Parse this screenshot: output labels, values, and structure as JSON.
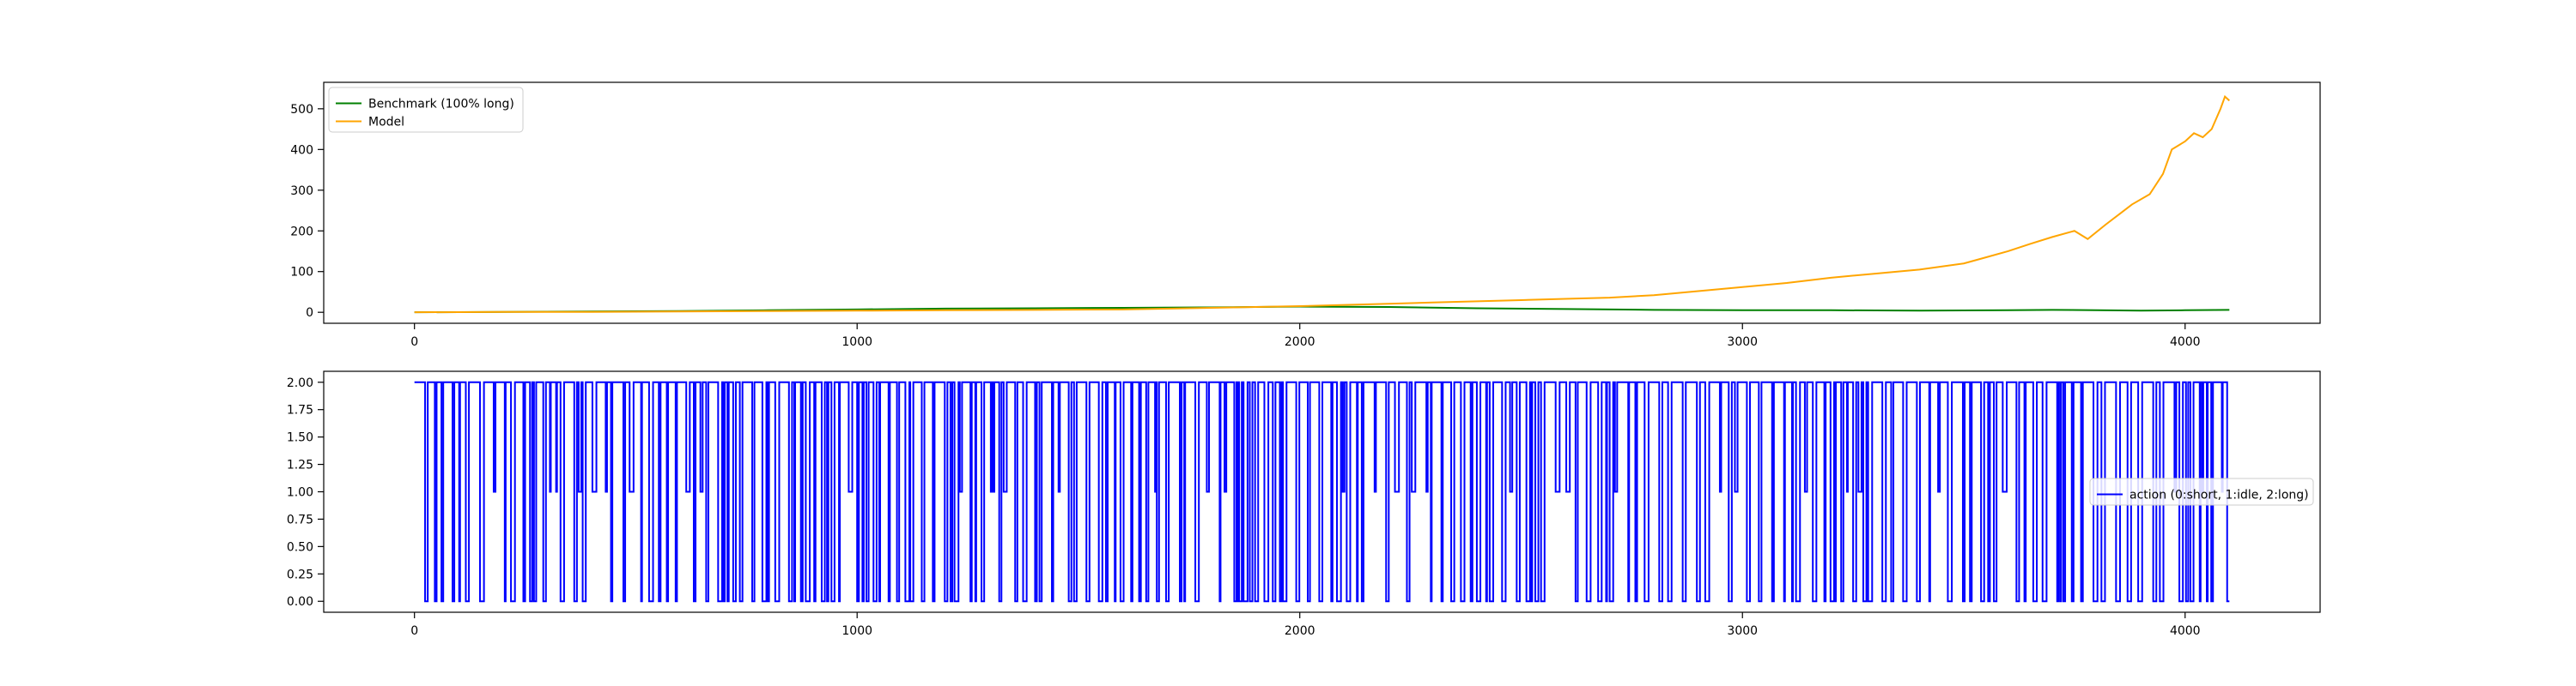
{
  "chart_data": [
    {
      "type": "line",
      "title": "",
      "xlabel": "",
      "ylabel": "",
      "xlim": [
        -205,
        4305
      ],
      "ylim": [
        -27,
        565
      ],
      "xticks": [
        0,
        1000,
        2000,
        3000,
        4000
      ],
      "yticks": [
        0,
        100,
        200,
        300,
        400,
        500
      ],
      "grid": false,
      "legend_position": "upper-left",
      "series": [
        {
          "name": "Benchmark (100% long)",
          "color": "#008000",
          "x": [
            0,
            200,
            400,
            600,
            800,
            1000,
            1200,
            1400,
            1600,
            1800,
            2000,
            2200,
            2400,
            2600,
            2800,
            3000,
            3200,
            3400,
            3600,
            3700,
            3800,
            3900,
            4000,
            4100
          ],
          "y": [
            0,
            1,
            2,
            3,
            5,
            7,
            9,
            10,
            11,
            12,
            14,
            13,
            10,
            8,
            6,
            5,
            5,
            4,
            5,
            6,
            5,
            4,
            5,
            6
          ]
        },
        {
          "name": "Model",
          "color": "#ffa500",
          "x": [
            0,
            200,
            400,
            600,
            800,
            1000,
            1200,
            1400,
            1600,
            1800,
            2000,
            2100,
            2200,
            2300,
            2400,
            2500,
            2600,
            2700,
            2800,
            2900,
            3000,
            3100,
            3200,
            3300,
            3400,
            3500,
            3550,
            3600,
            3650,
            3700,
            3750,
            3780,
            3820,
            3850,
            3880,
            3920,
            3950,
            3970,
            4000,
            4020,
            4040,
            4060,
            4080,
            4090,
            4100
          ],
          "y": [
            0,
            1,
            1,
            2,
            3,
            4,
            5,
            6,
            7,
            11,
            15,
            18,
            21,
            24,
            27,
            30,
            33,
            36,
            42,
            52,
            62,
            72,
            85,
            95,
            105,
            120,
            135,
            150,
            168,
            185,
            200,
            180,
            215,
            240,
            265,
            290,
            340,
            400,
            420,
            440,
            430,
            450,
            500,
            530,
            520
          ]
        }
      ]
    },
    {
      "type": "line",
      "title": "",
      "xlabel": "",
      "ylabel": "",
      "xlim": [
        -205,
        4305
      ],
      "ylim": [
        -0.1,
        2.1
      ],
      "xticks": [
        0,
        1000,
        2000,
        3000,
        4000
      ],
      "yticks": [
        "0.00",
        "0.25",
        "0.50",
        "0.75",
        "1.00",
        "1.25",
        "1.50",
        "1.75",
        "2.00"
      ],
      "grid": false,
      "legend_position": "center-right",
      "series": [
        {
          "name": "action (0:short, 1:idle, 2:long)",
          "color": "#0000ff",
          "step_count": 4100,
          "value_levels": [
            0,
            1,
            2
          ]
        }
      ]
    }
  ]
}
